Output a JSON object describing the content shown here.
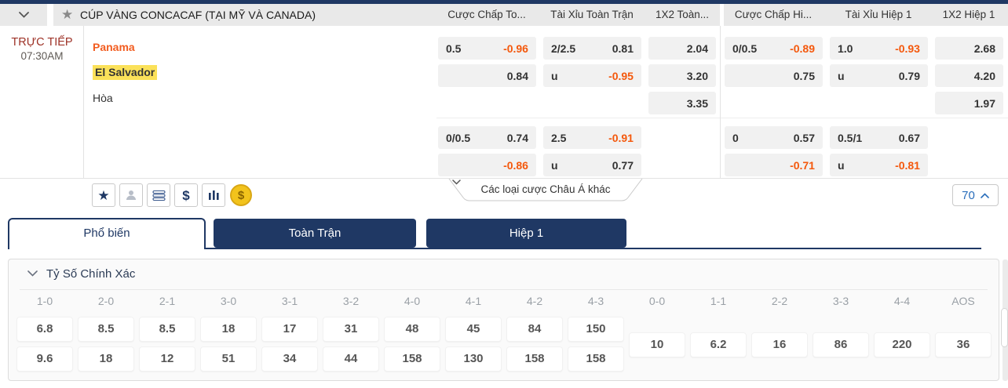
{
  "colors": {
    "navy": "#1f3864",
    "odds_negative_orange": "#f4580c",
    "team_home_orange": "#f25c1f",
    "highlight_yellow": "#fbe159",
    "live_red": "#9d3126",
    "count_blue": "#2a6ebb"
  },
  "top_header": {
    "title": "CÚP VÀNG CONCACAF (TẠI MỸ VÀ CANADA)",
    "columns": [
      "Cược Chấp To...",
      "Tài Xỉu Toàn Trận",
      "1X2 Toàn...",
      "Cược Chấp Hi...",
      "Tài Xỉu Hiệp 1",
      "1X2 Hiệp 1"
    ]
  },
  "match": {
    "live_label": "TRỰC TIẾP",
    "time": "07:30AM",
    "home": "Panama",
    "away": "El Salvador",
    "draw_label": "Hòa"
  },
  "odds": {
    "full": {
      "hdp": {
        "lines": [
          [
            "0.5",
            "-0.96"
          ],
          [
            "",
            "0.84"
          ]
        ]
      },
      "ou": {
        "lines": [
          [
            "2/2.5",
            "0.81"
          ],
          [
            "u",
            "-0.95"
          ]
        ]
      },
      "x12": [
        "2.04",
        "3.20",
        "3.35"
      ],
      "hdp2": {
        "lines": [
          [
            "0/0.5",
            "0.74"
          ],
          [
            "",
            "-0.86"
          ]
        ]
      },
      "ou2": {
        "lines": [
          [
            "2.5",
            "-0.91"
          ],
          [
            "u",
            "0.77"
          ]
        ]
      }
    },
    "half": {
      "hdp": {
        "lines": [
          [
            "0/0.5",
            "-0.89"
          ],
          [
            "",
            "0.75"
          ]
        ]
      },
      "ou": {
        "lines": [
          [
            "1.0",
            "-0.93"
          ],
          [
            "u",
            "0.79"
          ]
        ]
      },
      "x12": [
        "2.68",
        "4.20",
        "1.97"
      ],
      "hdp2": {
        "lines": [
          [
            "0",
            "0.57"
          ],
          [
            "",
            "-0.71"
          ]
        ]
      },
      "ou2": {
        "lines": [
          [
            "0.5/1",
            "0.67"
          ],
          [
            "u",
            "-0.81"
          ]
        ]
      }
    }
  },
  "toolbar": {
    "icons": [
      "favorite-star-icon",
      "user-icon",
      "parlay-stack-icon",
      "dollar-icon",
      "bar-chart-icon",
      "coin-icon"
    ],
    "star_glyph": "★",
    "dollar_glyph": "$",
    "coin_glyph": "$",
    "more_bets_label": "Các loại cược Châu Á khác",
    "market_count": "70"
  },
  "tabs": [
    {
      "label": "Phổ biến",
      "active": true
    },
    {
      "label": "Toàn Trận",
      "active": false
    },
    {
      "label": "Hiệp 1",
      "active": false
    }
  ],
  "score_section": {
    "title": "Tỷ Số Chính Xác",
    "pairs": [
      [
        "1-0",
        "6.8",
        "9.6"
      ],
      [
        "2-0",
        "8.5",
        "18"
      ],
      [
        "2-1",
        "8.5",
        "12"
      ],
      [
        "3-0",
        "18",
        "51"
      ],
      [
        "3-1",
        "17",
        "34"
      ],
      [
        "3-2",
        "31",
        "44"
      ],
      [
        "4-0",
        "48",
        "158"
      ],
      [
        "4-1",
        "45",
        "130"
      ],
      [
        "4-2",
        "84",
        "158"
      ],
      [
        "4-3",
        "150",
        "158"
      ]
    ],
    "singles": [
      [
        "0-0",
        "10"
      ],
      [
        "1-1",
        "6.2"
      ],
      [
        "2-2",
        "16"
      ],
      [
        "3-3",
        "86"
      ],
      [
        "4-4",
        "220"
      ],
      [
        "AOS",
        "36"
      ]
    ]
  }
}
